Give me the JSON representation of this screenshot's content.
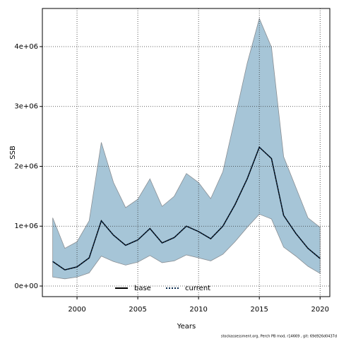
{
  "chart_data": {
    "type": "line",
    "xlabel": "Years",
    "ylabel": "SSB",
    "footer": "stockassessment.org, Perch PB mod, r14669 , git: 69d926d0437d",
    "x": [
      1998,
      1999,
      2000,
      2001,
      2002,
      2003,
      2004,
      2005,
      2006,
      2007,
      2008,
      2009,
      2010,
      2011,
      2012,
      2013,
      2014,
      2015,
      2016,
      2017,
      2018,
      2019,
      2020
    ],
    "band": {
      "color": "#a6c5d7",
      "edge": "#8a8f94",
      "upper": [
        1140000,
        630000,
        740000,
        1090000,
        2400000,
        1730000,
        1310000,
        1450000,
        1790000,
        1330000,
        1500000,
        1880000,
        1730000,
        1460000,
        1910000,
        2810000,
        3720000,
        4470000,
        3990000,
        2160000,
        1650000,
        1140000,
        980000
      ],
      "lower": [
        150000,
        120000,
        150000,
        220000,
        500000,
        410000,
        350000,
        400000,
        510000,
        390000,
        420000,
        520000,
        470000,
        420000,
        530000,
        740000,
        980000,
        1200000,
        1120000,
        650000,
        500000,
        330000,
        210000
      ]
    },
    "series": [
      {
        "name": "base",
        "color": "#000000",
        "dash": "solid",
        "values": [
          410000,
          270000,
          320000,
          470000,
          1090000,
          850000,
          680000,
          770000,
          960000,
          720000,
          810000,
          1000000,
          910000,
          790000,
          1000000,
          1360000,
          1790000,
          2320000,
          2130000,
          1180000,
          880000,
          630000,
          460000
        ]
      },
      {
        "name": "current",
        "color": "#0b2c4f",
        "dash": "dotted",
        "values": [
          410000,
          270000,
          320000,
          470000,
          1090000,
          850000,
          680000,
          770000,
          960000,
          720000,
          810000,
          1000000,
          910000,
          790000,
          1000000,
          1360000,
          1790000,
          2320000,
          2130000,
          1180000,
          880000,
          630000,
          460000
        ]
      }
    ],
    "xlim": [
      1997.15,
      2020.8
    ],
    "xticks": [
      2000,
      2005,
      2010,
      2015,
      2020
    ],
    "ylim": [
      -177000,
      4637000
    ],
    "yticks": [
      {
        "value": 0,
        "label": "0e+00"
      },
      {
        "value": 1000000,
        "label": "1e+06"
      },
      {
        "value": 2000000,
        "label": "2e+06"
      },
      {
        "value": 3000000,
        "label": "3e+06"
      },
      {
        "value": 4000000,
        "label": "4e+06"
      }
    ],
    "grid": true,
    "legend": "bottom"
  }
}
